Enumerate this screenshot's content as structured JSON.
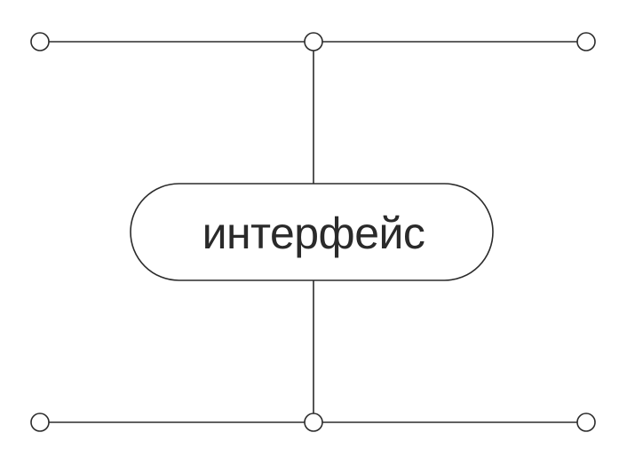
{
  "diagram": {
    "center_label": "интерфейс"
  },
  "colors": {
    "background": "#ffffff",
    "stroke": "#2b2b2b",
    "text": "#2a2a2a"
  }
}
